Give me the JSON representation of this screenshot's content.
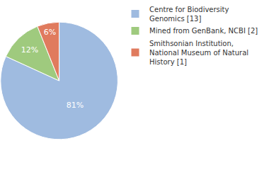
{
  "chart_data": {
    "type": "pie",
    "categories": [
      "Centre for Biodiversity Genomics [13]",
      "Mined from GenBank, NCBI [2]",
      "Smithsonian Institution, National Museum of Natural History [1]"
    ],
    "values": [
      81,
      12,
      6
    ],
    "value_labels": [
      "81%",
      "12%",
      "6%"
    ],
    "colors": [
      "#9fbbe0",
      "#9fca7e",
      "#e07b5e"
    ],
    "data_labels": true,
    "legend": "upper right"
  }
}
